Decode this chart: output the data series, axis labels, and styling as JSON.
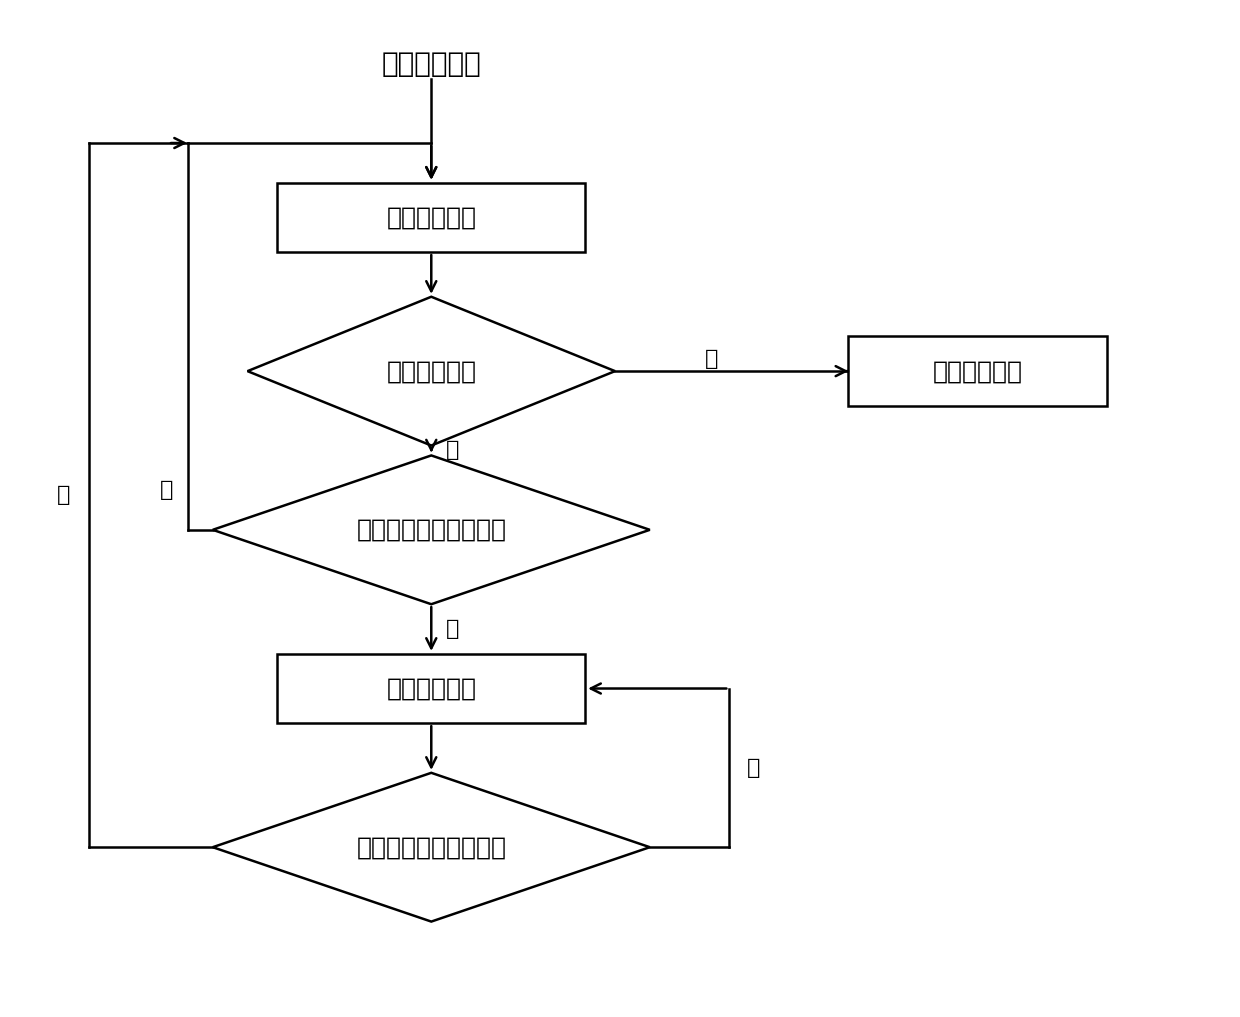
{
  "title": "进入恒流充电",
  "box1_text": "一级电流充电",
  "diamond1_text": "达到门限电压",
  "box_right_text": "进入恒压充电",
  "diamond2_text": "电池温度达到限制门限",
  "box2_text": "二级电流充电",
  "diamond3_text": "电池温度达到恢复门限",
  "yes_label": "是",
  "no_label": "否",
  "line_color": "#000000",
  "box_facecolor": "#ffffff",
  "box_edgecolor": "#000000",
  "text_color": "#000000",
  "bg_color": "#ffffff",
  "title_fontsize": 20,
  "label_fontsize": 18,
  "small_label_fontsize": 16,
  "lw": 1.8
}
